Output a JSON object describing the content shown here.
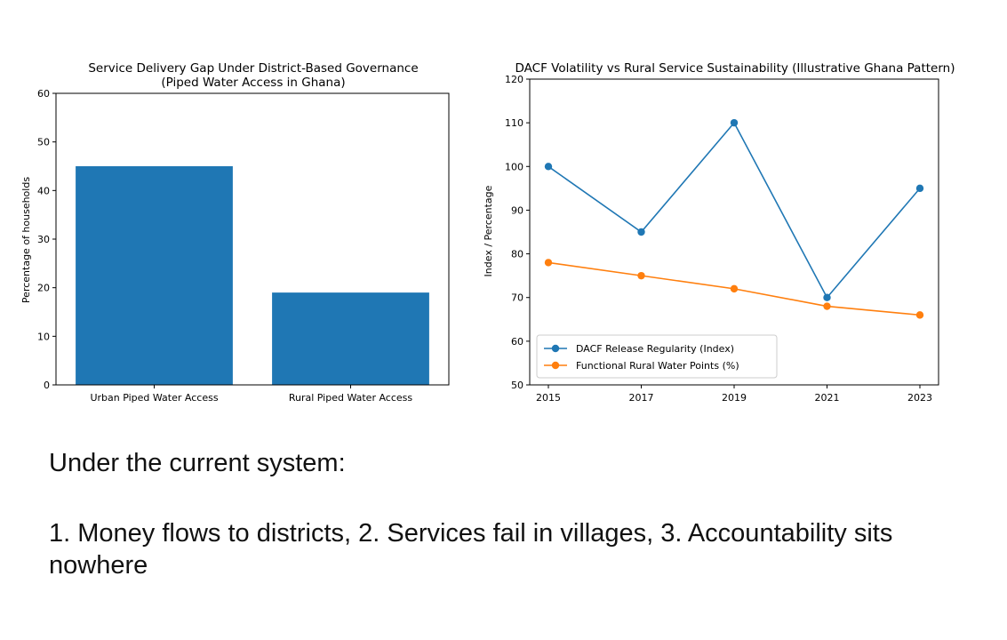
{
  "chart_data": [
    {
      "type": "bar",
      "title": "Service Delivery Gap Under District-Based Governance",
      "subtitle": "(Piped Water Access in Ghana)",
      "xlabel": "",
      "ylabel": "Percentage of households",
      "categories": [
        "Urban Piped Water Access",
        "Rural Piped Water Access"
      ],
      "values": [
        45,
        19
      ],
      "ylim": [
        0,
        60
      ],
      "yticks": [
        0,
        10,
        20,
        30,
        40,
        50,
        60
      ],
      "grid": false,
      "color": "#1f77b4"
    },
    {
      "type": "line",
      "title": "DACF Volatility vs Rural Service Sustainability (Illustrative Ghana Pattern)",
      "xlabel": "",
      "ylabel": "Index / Percentage",
      "x": [
        2015,
        2017,
        2019,
        2021,
        2023
      ],
      "ylim": [
        50,
        120
      ],
      "yticks": [
        50,
        60,
        70,
        80,
        90,
        100,
        110,
        120
      ],
      "grid": false,
      "legend_position": "lower-left",
      "series": [
        {
          "name": "DACF Release Regularity (Index)",
          "values": [
            100,
            85,
            110,
            70,
            95
          ],
          "color": "#1f77b4"
        },
        {
          "name": "Functional Rural Water Points (%)",
          "values": [
            78,
            75,
            72,
            68,
            66
          ],
          "color": "#ff7f0e"
        }
      ]
    }
  ],
  "caption": {
    "heading": "Under the current system:",
    "points": "1. Money flows to districts, 2. Services fail in villages, 3. Accountability sits nowhere"
  }
}
